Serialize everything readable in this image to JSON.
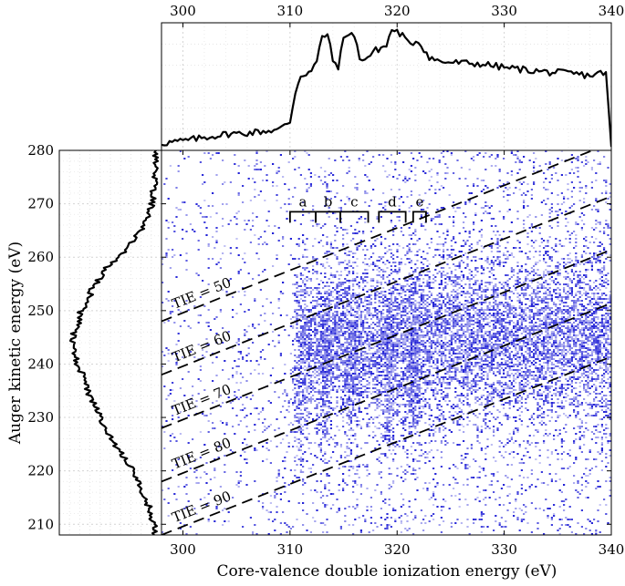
{
  "chart_data": [
    {
      "type": "line",
      "panel": "top",
      "description_of_axes": "x shared with main panel (Core-valence double ionization energy, eV)",
      "xlim": [
        298,
        340
      ],
      "xticks": [
        300,
        310,
        320,
        330,
        340
      ],
      "x": [
        298,
        300,
        302,
        304,
        306,
        308,
        309,
        310,
        310.5,
        311,
        312,
        312.5,
        313,
        313.5,
        314,
        314.5,
        315,
        315.5,
        316,
        316.5,
        317,
        318,
        319,
        319.5,
        320,
        320.5,
        321,
        322,
        323,
        324,
        326,
        328,
        330,
        332,
        334,
        336,
        338,
        339.5,
        340
      ],
      "y": [
        0.03,
        0.05,
        0.08,
        0.11,
        0.12,
        0.14,
        0.15,
        0.22,
        0.48,
        0.62,
        0.66,
        0.74,
        0.96,
        0.98,
        0.75,
        0.7,
        0.93,
        1.0,
        0.96,
        0.78,
        0.76,
        0.84,
        0.88,
        1.02,
        1.0,
        0.97,
        0.9,
        0.92,
        0.78,
        0.74,
        0.73,
        0.72,
        0.69,
        0.67,
        0.65,
        0.64,
        0.62,
        0.65,
        0.0
      ],
      "grid": true
    },
    {
      "type": "line",
      "panel": "left",
      "description_of_axes": "y shared with main panel (Auger kinetic energy, eV), intensity increases to the left",
      "ylim": [
        208,
        280
      ],
      "y": [
        208,
        210,
        212,
        214,
        216,
        218,
        220,
        222,
        224,
        226,
        228,
        230,
        232,
        234,
        236,
        238,
        240,
        242,
        244,
        246,
        248,
        250,
        252,
        254,
        256,
        258,
        260,
        262,
        264,
        266,
        268,
        270,
        272,
        274,
        276,
        278,
        280
      ],
      "x": [
        0.02,
        0.05,
        0.07,
        0.12,
        0.17,
        0.22,
        0.28,
        0.36,
        0.44,
        0.52,
        0.58,
        0.64,
        0.7,
        0.76,
        0.8,
        0.84,
        0.9,
        0.92,
        0.96,
        0.94,
        0.88,
        0.86,
        0.78,
        0.74,
        0.66,
        0.58,
        0.44,
        0.34,
        0.24,
        0.16,
        0.1,
        0.07,
        0.05,
        0.04,
        0.03,
        0.02,
        0.02
      ],
      "grid": true
    },
    {
      "type": "heatmap",
      "panel": "main",
      "xlabel": "Core-valence double ionization energy (eV)",
      "ylabel": "Auger kinetic energy (eV)",
      "xlim": [
        298,
        340
      ],
      "ylim": [
        208,
        280
      ],
      "xticks": [
        300,
        310,
        320,
        330,
        340
      ],
      "yticks": [
        210,
        220,
        230,
        240,
        250,
        260,
        270,
        280
      ],
      "colormap": [
        "#ffffff",
        "#1f1fd6"
      ],
      "dense_region": {
        "x": [
          310.5,
          340
        ],
        "y": [
          222,
          262
        ],
        "peak_y": 245
      },
      "bright_columns_x": [
        310.8,
        313.2,
        315.6,
        319.2,
        321.4
      ],
      "tie_lines": [
        {
          "label": "TIE = 50",
          "tie": 50
        },
        {
          "label": "TIE = 60",
          "tie": 60
        },
        {
          "label": "TIE = 70",
          "tie": 70
        },
        {
          "label": "TIE = 80",
          "tie": 80
        },
        {
          "label": "TIE = 90",
          "tie": 90
        }
      ],
      "brackets": [
        {
          "label": "a",
          "x": [
            310.0,
            312.4
          ]
        },
        {
          "label": "b",
          "x": [
            312.4,
            314.7
          ]
        },
        {
          "label": "c",
          "x": [
            314.7,
            317.3
          ]
        },
        {
          "label": "d",
          "x": [
            318.3,
            320.8
          ]
        },
        {
          "label": "e",
          "x": [
            321.5,
            322.7
          ]
        }
      ],
      "bracket_y": 268.5
    }
  ]
}
